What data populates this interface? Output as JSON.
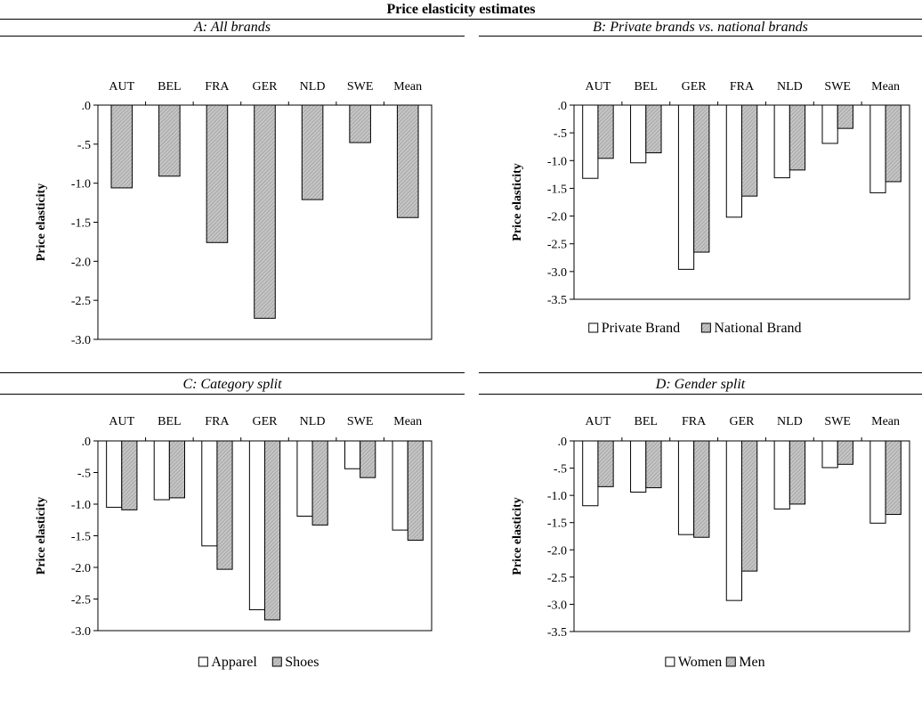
{
  "figure_title": "Price elasticity estimates",
  "chart_data": [
    {
      "type": "bar",
      "title": "A: All brands",
      "ylabel": "Price elasticity",
      "ylim": [
        -3.0,
        0.0
      ],
      "yticks": [
        0.0,
        -0.5,
        -1.0,
        -1.5,
        -2.0,
        -2.5,
        -3.0
      ],
      "ytick_labels": [
        ".0",
        "-.5",
        "-1.0",
        "-1.5",
        "-2.0",
        "-2.5",
        "-3.0"
      ],
      "categories": [
        "AUT",
        "BEL",
        "FRA",
        "GER",
        "NLD",
        "SWE",
        "Mean"
      ],
      "series": [
        {
          "values": [
            -1.06,
            -0.91,
            -1.76,
            -2.73,
            -1.21,
            -0.48,
            -1.44
          ],
          "color": "#bdbdbd",
          "hatch": true
        }
      ],
      "legend": []
    },
    {
      "type": "bar",
      "title": "B: Private brands vs. national brands",
      "ylabel": "Price elasticity",
      "ylim": [
        -3.5,
        0.0
      ],
      "yticks": [
        0.0,
        -0.5,
        -1.0,
        -1.5,
        -2.0,
        -2.5,
        -3.0,
        -3.5
      ],
      "ytick_labels": [
        ".0",
        "-.5",
        "-1.0",
        "-1.5",
        "-2.0",
        "-2.5",
        "-3.0",
        "-3.5"
      ],
      "categories": [
        "AUT",
        "BEL",
        "GER",
        "FRA",
        "NLD",
        "SWE",
        "Mean"
      ],
      "series": [
        {
          "name": "Private Brand",
          "values": [
            -1.32,
            -1.04,
            -2.96,
            -2.02,
            -1.31,
            -0.69,
            -1.58
          ],
          "color": "#ffffff",
          "hatch": false
        },
        {
          "name": "National Brand",
          "values": [
            -0.96,
            -0.86,
            -2.65,
            -1.64,
            -1.17,
            -0.42,
            -1.38
          ],
          "color": "#bdbdbd",
          "hatch": true
        }
      ],
      "legend": [
        "Private Brand",
        "National Brand"
      ]
    },
    {
      "type": "bar",
      "title": "C: Category split",
      "ylabel": "Price elasticity",
      "ylim": [
        -3.0,
        0.0
      ],
      "yticks": [
        0.0,
        -0.5,
        -1.0,
        -1.5,
        -2.0,
        -2.5,
        -3.0
      ],
      "ytick_labels": [
        ".0",
        "-.5",
        "-1.0",
        "-1.5",
        "-2.0",
        "-2.5",
        "-3.0"
      ],
      "categories": [
        "AUT",
        "BEL",
        "FRA",
        "GER",
        "NLD",
        "SWE",
        "Mean"
      ],
      "series": [
        {
          "name": "Apparel",
          "values": [
            -1.05,
            -0.93,
            -1.66,
            -2.67,
            -1.19,
            -0.44,
            -1.41
          ],
          "color": "#ffffff",
          "hatch": false
        },
        {
          "name": "Shoes",
          "values": [
            -1.09,
            -0.9,
            -2.03,
            -2.83,
            -1.33,
            -0.58,
            -1.57
          ],
          "color": "#bdbdbd",
          "hatch": true
        }
      ],
      "legend": [
        "Apparel",
        "Shoes"
      ]
    },
    {
      "type": "bar",
      "title": "D: Gender split",
      "ylabel": "Price elasticity",
      "ylim": [
        -3.5,
        0.0
      ],
      "yticks": [
        0.0,
        -0.5,
        -1.0,
        -1.5,
        -2.0,
        -2.5,
        -3.0,
        -3.5
      ],
      "ytick_labels": [
        ".0",
        "-.5",
        "-1.0",
        "-1.5",
        "-2.0",
        "-2.5",
        "-3.0",
        "-3.5"
      ],
      "categories": [
        "AUT",
        "BEL",
        "FRA",
        "GER",
        "NLD",
        "SWE",
        "Mean"
      ],
      "series": [
        {
          "name": "Women",
          "values": [
            -1.19,
            -0.94,
            -1.72,
            -2.93,
            -1.25,
            -0.49,
            -1.51
          ],
          "color": "#ffffff",
          "hatch": false
        },
        {
          "name": "Men",
          "values": [
            -0.84,
            -0.86,
            -1.77,
            -2.39,
            -1.16,
            -0.43,
            -1.35
          ],
          "color": "#bdbdbd",
          "hatch": true
        }
      ],
      "legend": [
        "Women",
        "Men"
      ]
    }
  ]
}
